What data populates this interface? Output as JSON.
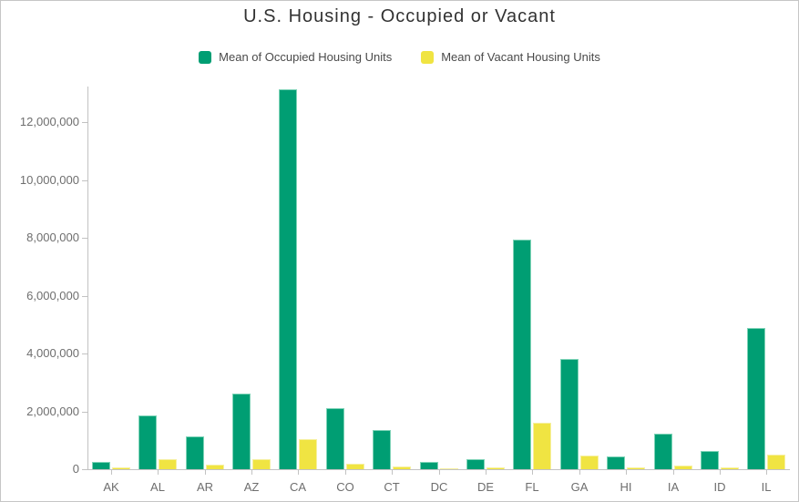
{
  "chart_data": {
    "type": "bar",
    "title": "U.S. Housing - Occupied or Vacant",
    "categories": [
      "AK",
      "AL",
      "AR",
      "AZ",
      "CA",
      "CO",
      "CT",
      "DC",
      "DE",
      "FL",
      "GA",
      "HI",
      "IA",
      "ID",
      "IL"
    ],
    "series": [
      {
        "name": "Mean of Occupied Housing Units",
        "color": "#009E73",
        "border_color": "#7ed3b7",
        "values": [
          250000,
          1870000,
          1140000,
          2610000,
          13150000,
          2110000,
          1350000,
          260000,
          350000,
          7940000,
          3810000,
          440000,
          1240000,
          620000,
          4890000
        ]
      },
      {
        "name": "Mean of Vacant Housing Units",
        "color": "#F0E442",
        "border_color": "#f6f0a0",
        "values": [
          55000,
          350000,
          155000,
          360000,
          1050000,
          180000,
          95000,
          30000,
          55000,
          1610000,
          475000,
          65000,
          125000,
          75000,
          490000
        ]
      }
    ],
    "y_axis": {
      "ticks": [
        0,
        2000000,
        4000000,
        6000000,
        8000000,
        10000000,
        12000000
      ],
      "tick_labels": [
        "0",
        "2,000,000",
        "4,000,000",
        "6,000,000",
        "8,000,000",
        "10,000,000",
        "12,000,000"
      ],
      "plot_max": 13240000
    },
    "grid": false,
    "legend_position": "top",
    "axis_color": "#c2c2c2",
    "label_color": "#6e6e6e"
  }
}
